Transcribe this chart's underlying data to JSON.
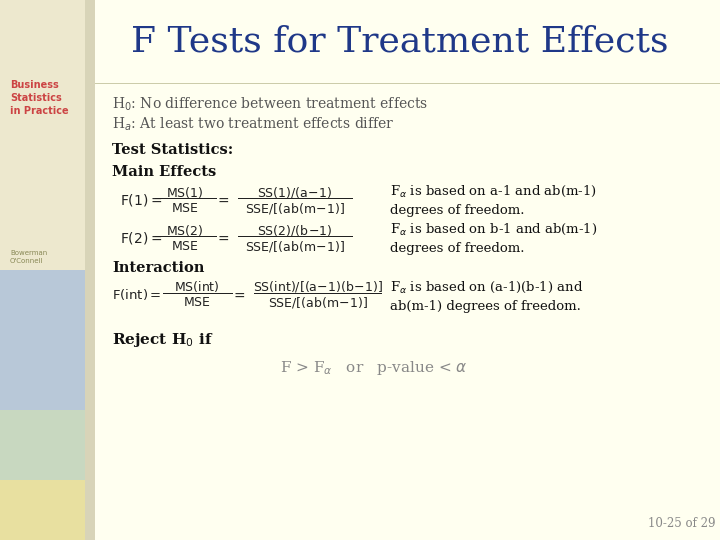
{
  "title": "F Tests for Treatment Effects",
  "title_color": "#1F3888",
  "slide_bg": "#FFFFF0",
  "content_bg": "#FFFFF0",
  "left_bg": "#F0EDD8",
  "h0_text": "H$_0$: No difference between treatment effects",
  "ha_text": "H$_a$: At least two treatment effects differ",
  "test_stat_label": "Test Statistics:",
  "main_effects_label": "Main Effects",
  "interaction_label": "Interaction",
  "reject_bold": "Reject H$_0$ if",
  "f1_note": "F$_{\\alpha}$ is based on a-1 and ab(m-1)\ndegrees of freedom.",
  "f2_note": "F$_{\\alpha}$ is based on b-1 and ab(m-1)\ndegrees of freedom.",
  "fint_note": "F$_{\\alpha}$ is based on (a-1)(b-1) and\nab(m-1) degrees of freedom.",
  "reject_formula": "F > F$_{\\alpha}$   or   p-value < $\\alpha$",
  "slide_num": "10-25 of 29",
  "text_gray": "#555555",
  "text_dark": "#111111",
  "formula_color": "#222222",
  "sidebar_cream": "#EDE8CE",
  "sidebar_blue": "#B8C8D8",
  "sidebar_green": "#C8D8C0",
  "sidebar_yellow": "#E8E0A0",
  "sidebar_strip": "#D8D0B0"
}
